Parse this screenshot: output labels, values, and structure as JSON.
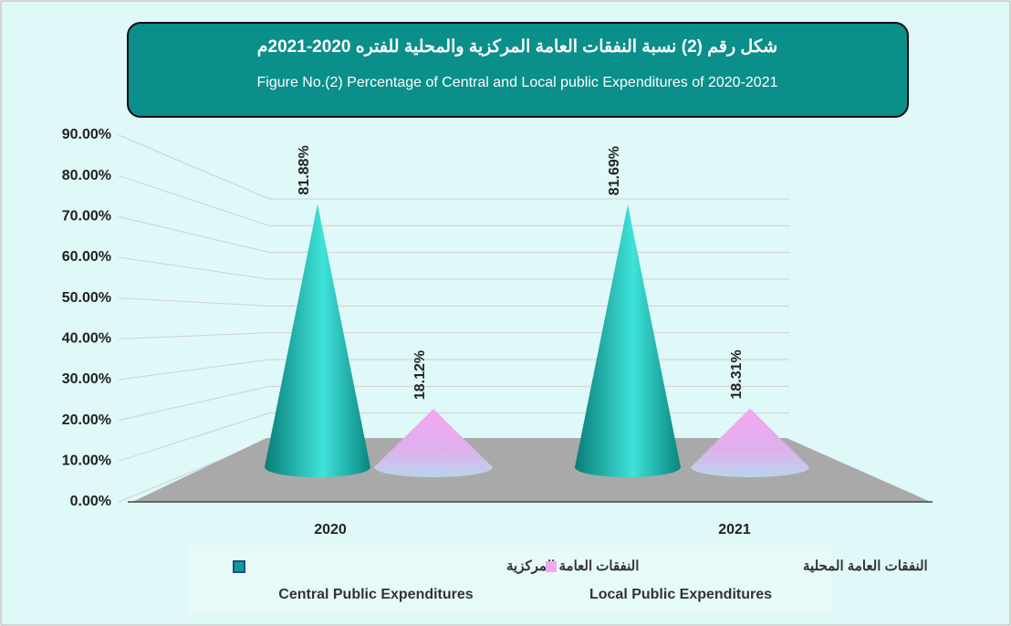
{
  "chart_data": {
    "type": "cone",
    "title": "شكل رقم (2) نسبة النفقات العامة المركزية والمحلية للفتره 2020-2021م",
    "subtitle": "Figure No.(2) Percentage of Central and Local public Expenditures of 2020-2021",
    "categories": [
      "2020",
      "2021"
    ],
    "series": [
      {
        "name": "Central Public Expenditures",
        "name_ar": "النفقات العامة المركزية",
        "color": "#109a94",
        "values": [
          81.88,
          81.69
        ],
        "value_labels": [
          "81.88%",
          "81.69%"
        ]
      },
      {
        "name": "Local Public Expenditures",
        "name_ar": "النفقات العامة المحلية",
        "color": "#f0a8f0",
        "values": [
          18.12,
          18.31
        ],
        "value_labels": [
          "18.12%",
          "18.31%"
        ]
      }
    ],
    "ylim": [
      0,
      90
    ],
    "yticks": [
      {
        "value": 0,
        "label": "0.00%"
      },
      {
        "value": 10,
        "label": "10.00%"
      },
      {
        "value": 20,
        "label": "20.00%"
      },
      {
        "value": 30,
        "label": "30.00%"
      },
      {
        "value": 40,
        "label": "40.00%"
      },
      {
        "value": 50,
        "label": "50.00%"
      },
      {
        "value": 60,
        "label": "60.00%"
      },
      {
        "value": 70,
        "label": "70.00%"
      },
      {
        "value": 80,
        "label": "80.00%"
      },
      {
        "value": 90,
        "label": "90.00%"
      }
    ],
    "grid": true
  }
}
